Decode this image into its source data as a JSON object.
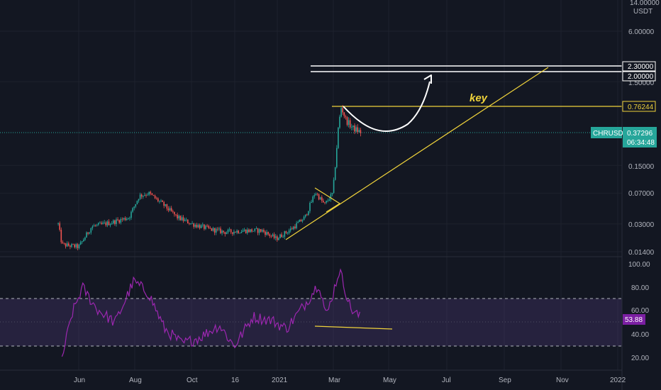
{
  "colors": {
    "background": "#131722",
    "grid": "#1e222d",
    "up": "#26a69a",
    "down": "#ef5350",
    "trendline": "#f0d33b",
    "rsi_line": "#9c27b0",
    "rsi_band": "#7e57c2",
    "price_tag": "#26a69a",
    "white": "#ffffff"
  },
  "price_axis": {
    "unit_top": "14.00000",
    "currency": "USDT",
    "ticks": [
      "6.00000",
      "1.50000",
      "0.15000",
      "0.07000",
      "0.03000",
      "0.01400"
    ],
    "level_tags": [
      "2.30000",
      "2.00000",
      "0.76244"
    ],
    "current": {
      "symbol": "CHRUSDT",
      "price": "0.37296",
      "countdown": "06:34:48"
    }
  },
  "time_axis": {
    "labels": [
      "Jun",
      "Aug",
      "Oct",
      "16",
      "2021",
      "Mar",
      "May",
      "Jul",
      "Sep",
      "Nov",
      "2022"
    ]
  },
  "annotation": {
    "key_label": "key"
  },
  "rsi": {
    "ticks": [
      "100.00",
      "80.00",
      "60.00",
      "40.00",
      "20.00"
    ],
    "current": "53.88",
    "upper_band": 70,
    "lower_band": 30
  },
  "chart_data": {
    "type": "candlestick",
    "symbol": "CHRUSDT",
    "scale": "log",
    "ylim": [
      0.012,
      14.0
    ],
    "x_labels": [
      "Jun",
      "Aug",
      "Oct",
      "16",
      "2021",
      "Mar",
      "May",
      "Jul",
      "Sep",
      "Nov",
      "2022"
    ],
    "price_path": [
      {
        "date": "2020-05-10",
        "close": 0.03
      },
      {
        "date": "2020-05-14",
        "close": 0.017
      },
      {
        "date": "2020-06-01",
        "close": 0.016
      },
      {
        "date": "2020-06-15",
        "close": 0.028
      },
      {
        "date": "2020-07-05",
        "close": 0.031
      },
      {
        "date": "2020-07-25",
        "close": 0.036
      },
      {
        "date": "2020-08-05",
        "close": 0.065
      },
      {
        "date": "2020-08-15",
        "close": 0.07
      },
      {
        "date": "2020-08-30",
        "close": 0.052
      },
      {
        "date": "2020-09-15",
        "close": 0.036
      },
      {
        "date": "2020-10-01",
        "close": 0.03
      },
      {
        "date": "2020-10-20",
        "close": 0.026
      },
      {
        "date": "2020-11-05",
        "close": 0.024
      },
      {
        "date": "2020-11-25",
        "close": 0.025
      },
      {
        "date": "2020-12-15",
        "close": 0.025
      },
      {
        "date": "2020-12-30",
        "close": 0.02
      },
      {
        "date": "2021-01-15",
        "close": 0.026
      },
      {
        "date": "2021-01-30",
        "close": 0.036
      },
      {
        "date": "2021-02-10",
        "close": 0.072
      },
      {
        "date": "2021-02-20",
        "close": 0.051
      },
      {
        "date": "2021-03-01",
        "close": 0.07
      },
      {
        "date": "2021-03-07",
        "close": 0.45
      },
      {
        "date": "2021-03-10",
        "close": 0.75
      },
      {
        "date": "2021-03-15",
        "close": 0.52
      },
      {
        "date": "2021-03-22",
        "close": 0.42
      },
      {
        "date": "2021-03-31",
        "close": 0.373
      }
    ],
    "horizontal_levels": [
      2.3,
      2.0,
      0.76244
    ],
    "rsi_path": [
      {
        "date": "2020-05-14",
        "value": 20
      },
      {
        "date": "2020-05-25",
        "value": 58
      },
      {
        "date": "2020-06-05",
        "value": 80
      },
      {
        "date": "2020-06-20",
        "value": 62
      },
      {
        "date": "2020-07-10",
        "value": 50
      },
      {
        "date": "2020-07-30",
        "value": 85
      },
      {
        "date": "2020-08-15",
        "value": 75
      },
      {
        "date": "2020-09-01",
        "value": 45
      },
      {
        "date": "2020-09-20",
        "value": 32
      },
      {
        "date": "2020-10-10",
        "value": 38
      },
      {
        "date": "2020-10-30",
        "value": 48
      },
      {
        "date": "2020-11-15",
        "value": 30
      },
      {
        "date": "2020-12-05",
        "value": 55
      },
      {
        "date": "2020-12-25",
        "value": 52
      },
      {
        "date": "2021-01-10",
        "value": 45
      },
      {
        "date": "2021-02-01",
        "value": 68
      },
      {
        "date": "2021-02-14",
        "value": 84
      },
      {
        "date": "2021-02-22",
        "value": 55
      },
      {
        "date": "2021-03-08",
        "value": 95
      },
      {
        "date": "2021-03-20",
        "value": 62
      },
      {
        "date": "2021-03-31",
        "value": 53.88
      }
    ]
  }
}
